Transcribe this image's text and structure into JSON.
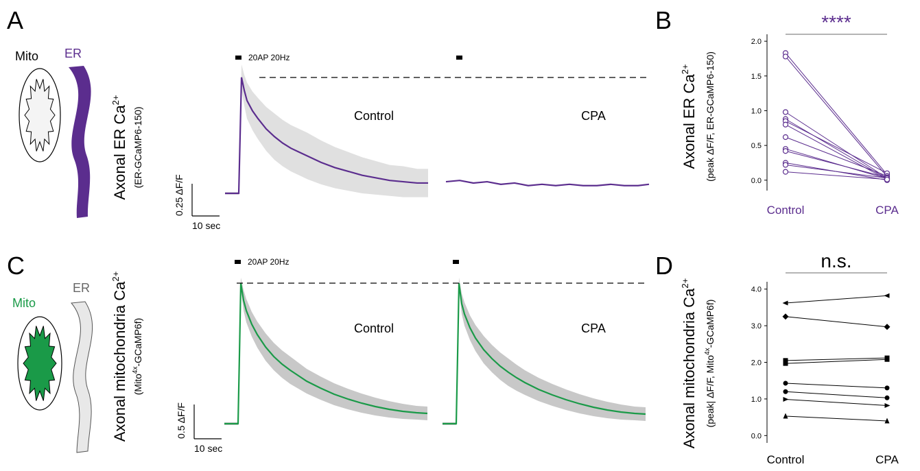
{
  "panel_labels": [
    "A",
    "B",
    "C",
    "D"
  ],
  "schematics": [
    {
      "mito": "Mito",
      "er": "ER"
    },
    {
      "mito": "Mito",
      "er": "ER"
    }
  ],
  "chart_data": [
    {
      "type": "trace",
      "ylabel": {
        "text": "Axonal ER Ca",
        "sup": "2+"
      },
      "ysublabel": {
        "pre": "(ER-GCaMP6-150)"
      },
      "stim_label": "20AP 20Hz",
      "scale_y": {
        "value": 0.25,
        "label": "0.25 ΔF/F"
      },
      "scale_x": {
        "value": 10,
        "label": "10 sec"
      },
      "band_color": "#e0e0e0",
      "series": [
        {
          "name": "Control",
          "color": "#5b2d8e",
          "x": [
            0,
            4,
            5,
            5.5,
            6,
            7,
            8,
            10,
            12,
            15,
            18,
            21,
            24,
            27,
            30,
            35,
            40,
            45,
            50,
            55,
            60,
            65,
            70,
            74
          ],
          "values": [
            0,
            0,
            0,
            0.45,
            0.9,
            0.8,
            0.72,
            0.64,
            0.58,
            0.5,
            0.44,
            0.39,
            0.35,
            0.32,
            0.29,
            0.24,
            0.2,
            0.17,
            0.14,
            0.12,
            0.1,
            0.09,
            0.08,
            0.08
          ],
          "error": [
            0.01,
            0.01,
            0.01,
            0.05,
            0.1,
            0.12,
            0.14,
            0.15,
            0.16,
            0.17,
            0.18,
            0.18,
            0.18,
            0.18,
            0.18,
            0.17,
            0.16,
            0.15,
            0.14,
            0.13,
            0.12,
            0.12,
            0.11,
            0.11
          ]
        },
        {
          "name": "CPA",
          "color": "#5b2d8e",
          "x": [
            0,
            5,
            10,
            15,
            20,
            25,
            30,
            35,
            40,
            45,
            50,
            55,
            60,
            65,
            70,
            74
          ],
          "values": [
            0.09,
            0.1,
            0.08,
            0.09,
            0.07,
            0.08,
            0.06,
            0.07,
            0.06,
            0.07,
            0.06,
            0.06,
            0.07,
            0.06,
            0.06,
            0.07
          ]
        }
      ]
    },
    {
      "type": "paired",
      "ylabel": {
        "text": "Axonal ER Ca",
        "sup": "2+"
      },
      "ysublabel": {
        "pre": "(peak ΔF/F, ER-GCaMP6-150)"
      },
      "categories": [
        "Control",
        "CPA"
      ],
      "label_color": "#5b2d8e",
      "significance": "****",
      "ylim": [
        -0.15,
        2.1
      ],
      "yticks": [
        {
          "value": 0,
          "label": "0.0"
        },
        0.5,
        {
          "value": 1,
          "label": "1.0"
        },
        1.5,
        {
          "value": 2,
          "label": "2.0"
        }
      ],
      "series": [
        {
          "color": "#5b2d8e",
          "marker": "circle-open",
          "values": [
            1.83,
            0.08
          ]
        },
        {
          "color": "#5b2d8e",
          "marker": "circle-open",
          "values": [
            1.78,
            0.05
          ]
        },
        {
          "color": "#5b2d8e",
          "marker": "circle-open",
          "values": [
            0.98,
            0.03
          ]
        },
        {
          "color": "#5b2d8e",
          "marker": "circle-open",
          "values": [
            0.88,
            0.02
          ]
        },
        {
          "color": "#5b2d8e",
          "marker": "circle-open",
          "values": [
            0.85,
            0.1
          ]
        },
        {
          "color": "#5b2d8e",
          "marker": "circle-open",
          "values": [
            0.8,
            0.01
          ]
        },
        {
          "color": "#5b2d8e",
          "marker": "circle-open",
          "values": [
            0.62,
            0.06
          ]
        },
        {
          "color": "#5b2d8e",
          "marker": "circle-open",
          "values": [
            0.45,
            0.02
          ]
        },
        {
          "color": "#5b2d8e",
          "marker": "circle-open",
          "values": [
            0.42,
            0.04
          ]
        },
        {
          "color": "#5b2d8e",
          "marker": "circle-open",
          "values": [
            0.25,
            0
          ]
        },
        {
          "color": "#5b2d8e",
          "marker": "circle-open",
          "values": [
            0.22,
            0.03
          ]
        },
        {
          "color": "#5b2d8e",
          "marker": "circle-open",
          "values": [
            0.12,
            0.01
          ]
        }
      ]
    },
    {
      "type": "trace",
      "ylabel": {
        "text": "Axonal mitochondria Ca",
        "sup": "2+"
      },
      "ysublabel": {
        "pre": "(Mito",
        "sup": "4x",
        "post": "-GCaMP6f)"
      },
      "stim_label": "20AP 20Hz",
      "scale_y": {
        "value": 0.5,
        "label": "0.5 ΔF/F"
      },
      "scale_x": {
        "value": 10,
        "label": "10 sec"
      },
      "band_color": "#c8c8c8",
      "series": [
        {
          "name": "Control",
          "color": "#1a9a48",
          "x": [
            0,
            4,
            5,
            5.5,
            6,
            7,
            8,
            10,
            12,
            15,
            18,
            21,
            24,
            27,
            30,
            35,
            40,
            45,
            50,
            55,
            60,
            65,
            70,
            74
          ],
          "values": [
            0,
            0,
            0,
            1.0,
            2.05,
            1.8,
            1.65,
            1.45,
            1.3,
            1.12,
            0.98,
            0.87,
            0.78,
            0.7,
            0.62,
            0.52,
            0.43,
            0.36,
            0.3,
            0.25,
            0.21,
            0.18,
            0.16,
            0.15
          ],
          "error": [
            0.02,
            0.02,
            0.02,
            0.05,
            0.08,
            0.15,
            0.17,
            0.18,
            0.19,
            0.2,
            0.2,
            0.2,
            0.2,
            0.19,
            0.18,
            0.17,
            0.16,
            0.15,
            0.14,
            0.13,
            0.12,
            0.11,
            0.1,
            0.1
          ]
        },
        {
          "name": "CPA",
          "color": "#1a9a48",
          "x": [
            0,
            4,
            5,
            5.5,
            6,
            7,
            8,
            10,
            12,
            15,
            18,
            21,
            24,
            27,
            30,
            35,
            40,
            45,
            50,
            55,
            60,
            65,
            70,
            74
          ],
          "values": [
            0,
            0,
            0,
            1.0,
            2.05,
            1.75,
            1.6,
            1.4,
            1.25,
            1.08,
            0.95,
            0.84,
            0.75,
            0.67,
            0.6,
            0.5,
            0.42,
            0.35,
            0.29,
            0.24,
            0.2,
            0.17,
            0.15,
            0.14
          ],
          "error": [
            0.02,
            0.02,
            0.02,
            0.05,
            0.08,
            0.15,
            0.17,
            0.18,
            0.19,
            0.2,
            0.2,
            0.2,
            0.2,
            0.19,
            0.18,
            0.17,
            0.16,
            0.15,
            0.14,
            0.13,
            0.12,
            0.11,
            0.1,
            0.1
          ]
        }
      ]
    },
    {
      "type": "paired",
      "ylabel": {
        "text": "Axonal mitochondria Ca",
        "sup": "2+"
      },
      "ysublabel": {
        "pre": "(peak| ΔF/F, Mito",
        "sup": "4x",
        "post": "-GCaMP6f)"
      },
      "categories": [
        "Control",
        "CPA"
      ],
      "label_color": "#000000",
      "significance": "n.s.",
      "ylim": [
        -0.2,
        4.2
      ],
      "yticks": [
        {
          "value": 0,
          "label": "0.0"
        },
        {
          "value": 1,
          "label": "1.0"
        },
        {
          "value": 2,
          "label": "2.0"
        },
        {
          "value": 3,
          "label": "3.0"
        },
        {
          "value": 4,
          "label": "4.0"
        }
      ],
      "series": [
        {
          "color": "#000000",
          "marker": "triangle-left",
          "values": [
            3.62,
            3.82
          ]
        },
        {
          "color": "#000000",
          "marker": "diamond",
          "values": [
            3.25,
            2.97
          ]
        },
        {
          "color": "#000000",
          "marker": "square",
          "values": [
            2.05,
            2.12
          ]
        },
        {
          "color": "#000000",
          "marker": "square",
          "values": [
            1.97,
            2.08
          ]
        },
        {
          "color": "#000000",
          "marker": "circle",
          "values": [
            1.43,
            1.3
          ]
        },
        {
          "color": "#000000",
          "marker": "circle",
          "values": [
            1.2,
            1.03
          ]
        },
        {
          "color": "#000000",
          "marker": "triangle-right",
          "values": [
            0.99,
            0.82
          ]
        },
        {
          "color": "#000000",
          "marker": "triangle-up",
          "values": [
            0.53,
            0.4
          ]
        }
      ]
    }
  ]
}
